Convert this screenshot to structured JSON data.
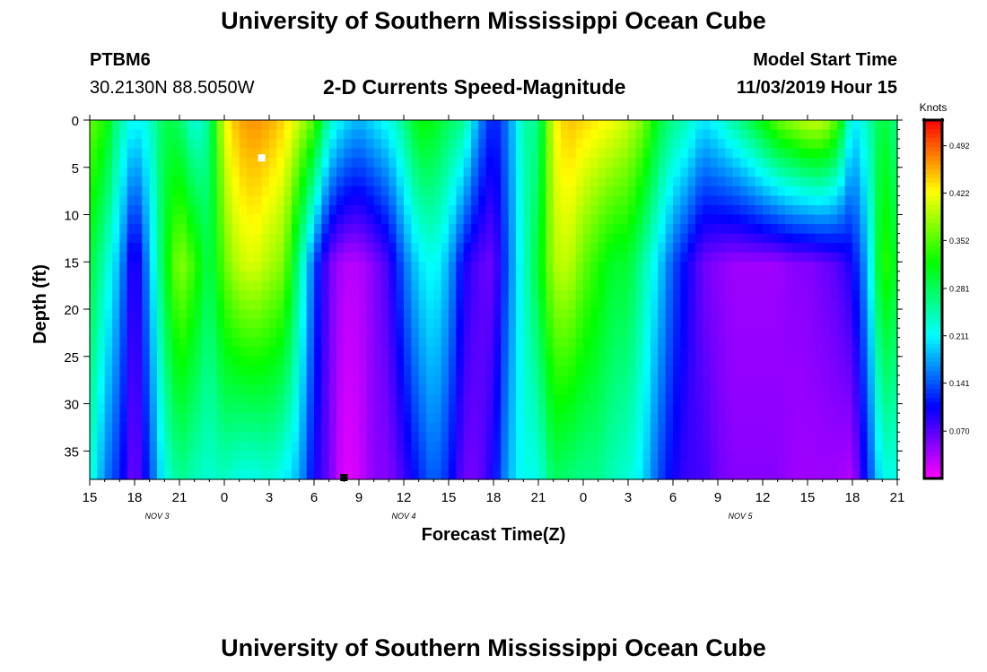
{
  "header": {
    "title": "University of Southern Mississippi Ocean Cube",
    "station_id": "PTBM6",
    "station_coords": "30.2130N 88.5050W",
    "plot_title": "2-D Currents Speed-Magnitude",
    "model_start_label": "Model Start Time",
    "model_start_value": "11/03/2019 Hour 15"
  },
  "footer": {
    "title": "University of Southern Mississippi Ocean Cube"
  },
  "chart_data": {
    "type": "heatmap",
    "title": "2-D Currents Speed-Magnitude",
    "xlabel": "Forecast Time(Z)",
    "ylabel": "Depth (ft)",
    "x_range_hours": [
      0,
      54
    ],
    "y_range_ft": [
      0,
      38
    ],
    "x_ticks": [
      {
        "label": "15",
        "hour": 0
      },
      {
        "label": "18",
        "hour": 3
      },
      {
        "label": "21",
        "hour": 6
      },
      {
        "label": "0",
        "hour": 9
      },
      {
        "label": "3",
        "hour": 12
      },
      {
        "label": "6",
        "hour": 15
      },
      {
        "label": "9",
        "hour": 18
      },
      {
        "label": "12",
        "hour": 21
      },
      {
        "label": "15",
        "hour": 24
      },
      {
        "label": "18",
        "hour": 27
      },
      {
        "label": "21",
        "hour": 30
      },
      {
        "label": "0",
        "hour": 33
      },
      {
        "label": "3",
        "hour": 36
      },
      {
        "label": "6",
        "hour": 39
      },
      {
        "label": "9",
        "hour": 42
      },
      {
        "label": "12",
        "hour": 45
      },
      {
        "label": "15",
        "hour": 48
      },
      {
        "label": "18",
        "hour": 51
      },
      {
        "label": "21",
        "hour": 54
      }
    ],
    "date_labels": [
      {
        "label": "NOV 3",
        "hour": 4.5
      },
      {
        "label": "NOV 4",
        "hour": 21
      },
      {
        "label": "NOV 5",
        "hour": 43.5
      }
    ],
    "y_ticks": [
      0,
      5,
      10,
      15,
      20,
      25,
      30,
      35
    ],
    "colorbar": {
      "unit": "Knots",
      "range": [
        0.0,
        0.53
      ],
      "ticks": [
        "0.492",
        "0.422",
        "0.352",
        "0.281",
        "0.211",
        "0.141",
        "0.070"
      ]
    },
    "markers": [
      {
        "color": "#ffffff",
        "hour": 11.5,
        "depth": 4
      },
      {
        "color": "#000000",
        "hour": 17,
        "depth": 38
      }
    ],
    "columns": [
      {
        "hour": 0,
        "surface": 0.36,
        "mid": 0.3,
        "bottom": 0.24
      },
      {
        "hour": 1,
        "surface": 0.33,
        "mid": 0.24,
        "bottom": 0.16
      },
      {
        "hour": 2,
        "surface": 0.25,
        "mid": 0.18,
        "bottom": 0.12
      },
      {
        "hour": 3,
        "surface": 0.21,
        "mid": 0.07,
        "bottom": 0.05
      },
      {
        "hour": 4,
        "surface": 0.23,
        "mid": 0.18,
        "bottom": 0.13
      },
      {
        "hour": 5,
        "surface": 0.29,
        "mid": 0.3,
        "bottom": 0.22
      },
      {
        "hour": 6,
        "surface": 0.28,
        "mid": 0.38,
        "bottom": 0.26
      },
      {
        "hour": 7,
        "surface": 0.22,
        "mid": 0.34,
        "bottom": 0.24
      },
      {
        "hour": 8,
        "surface": 0.26,
        "mid": 0.28,
        "bottom": 0.23
      },
      {
        "hour": 9,
        "surface": 0.42,
        "mid": 0.36,
        "bottom": 0.24
      },
      {
        "hour": 10,
        "surface": 0.46,
        "mid": 0.4,
        "bottom": 0.22
      },
      {
        "hour": 11,
        "surface": 0.47,
        "mid": 0.41,
        "bottom": 0.22
      },
      {
        "hour": 12,
        "surface": 0.46,
        "mid": 0.39,
        "bottom": 0.23
      },
      {
        "hour": 13,
        "surface": 0.44,
        "mid": 0.37,
        "bottom": 0.21
      },
      {
        "hour": 14,
        "surface": 0.4,
        "mid": 0.26,
        "bottom": 0.18
      },
      {
        "hour": 15,
        "surface": 0.35,
        "mid": 0.14,
        "bottom": 0.1
      },
      {
        "hour": 16,
        "surface": 0.24,
        "mid": 0.06,
        "bottom": 0.06
      },
      {
        "hour": 17,
        "surface": 0.2,
        "mid": 0.03,
        "bottom": 0.01
      },
      {
        "hour": 18,
        "surface": 0.18,
        "mid": 0.03,
        "bottom": 0.02
      },
      {
        "hour": 19,
        "surface": 0.2,
        "mid": 0.05,
        "bottom": 0.05
      },
      {
        "hour": 20,
        "surface": 0.22,
        "mid": 0.08,
        "bottom": 0.05
      },
      {
        "hour": 21,
        "surface": 0.26,
        "mid": 0.15,
        "bottom": 0.08
      },
      {
        "hour": 22,
        "surface": 0.32,
        "mid": 0.2,
        "bottom": 0.12
      },
      {
        "hour": 23,
        "surface": 0.31,
        "mid": 0.22,
        "bottom": 0.15
      },
      {
        "hour": 24,
        "surface": 0.28,
        "mid": 0.18,
        "bottom": 0.12
      },
      {
        "hour": 25,
        "surface": 0.26,
        "mid": 0.1,
        "bottom": 0.06
      },
      {
        "hour": 26,
        "surface": 0.17,
        "mid": 0.07,
        "bottom": 0.06
      },
      {
        "hour": 27,
        "surface": 0.11,
        "mid": 0.06,
        "bottom": 0.1
      },
      {
        "hour": 28,
        "surface": 0.16,
        "mid": 0.15,
        "bottom": 0.18
      },
      {
        "hour": 29,
        "surface": 0.25,
        "mid": 0.23,
        "bottom": 0.22
      },
      {
        "hour": 30,
        "surface": 0.26,
        "mid": 0.3,
        "bottom": 0.22
      },
      {
        "hour": 31,
        "surface": 0.42,
        "mid": 0.39,
        "bottom": 0.28
      },
      {
        "hour": 32,
        "surface": 0.45,
        "mid": 0.4,
        "bottom": 0.27
      },
      {
        "hour": 33,
        "surface": 0.44,
        "mid": 0.36,
        "bottom": 0.26
      },
      {
        "hour": 34,
        "surface": 0.43,
        "mid": 0.33,
        "bottom": 0.26
      },
      {
        "hour": 35,
        "surface": 0.42,
        "mid": 0.3,
        "bottom": 0.24
      },
      {
        "hour": 36,
        "surface": 0.4,
        "mid": 0.3,
        "bottom": 0.23
      },
      {
        "hour": 37,
        "surface": 0.37,
        "mid": 0.25,
        "bottom": 0.2
      },
      {
        "hour": 38,
        "surface": 0.3,
        "mid": 0.2,
        "bottom": 0.14
      },
      {
        "hour": 39,
        "surface": 0.26,
        "mid": 0.14,
        "bottom": 0.1
      },
      {
        "hour": 40,
        "surface": 0.24,
        "mid": 0.1,
        "bottom": 0.08
      },
      {
        "hour": 41,
        "surface": 0.2,
        "mid": 0.06,
        "bottom": 0.08
      },
      {
        "hour": 42,
        "surface": 0.22,
        "mid": 0.05,
        "bottom": 0.06
      },
      {
        "hour": 43,
        "surface": 0.25,
        "mid": 0.04,
        "bottom": 0.05
      },
      {
        "hour": 44,
        "surface": 0.28,
        "mid": 0.04,
        "bottom": 0.05
      },
      {
        "hour": 45,
        "surface": 0.32,
        "mid": 0.04,
        "bottom": 0.05
      },
      {
        "hour": 46,
        "surface": 0.36,
        "mid": 0.04,
        "bottom": 0.05
      },
      {
        "hour": 47,
        "surface": 0.38,
        "mid": 0.05,
        "bottom": 0.04
      },
      {
        "hour": 48,
        "surface": 0.4,
        "mid": 0.05,
        "bottom": 0.04
      },
      {
        "hour": 49,
        "surface": 0.4,
        "mid": 0.06,
        "bottom": 0.04
      },
      {
        "hour": 50,
        "surface": 0.35,
        "mid": 0.07,
        "bottom": 0.04
      },
      {
        "hour": 51,
        "surface": 0.2,
        "mid": 0.1,
        "bottom": 0.03
      },
      {
        "hour": 52,
        "surface": 0.24,
        "mid": 0.18,
        "bottom": 0.12
      },
      {
        "hour": 53,
        "surface": 0.3,
        "mid": 0.34,
        "bottom": 0.22
      },
      {
        "hour": 54,
        "surface": 0.26,
        "mid": 0.3,
        "bottom": 0.22
      }
    ]
  }
}
